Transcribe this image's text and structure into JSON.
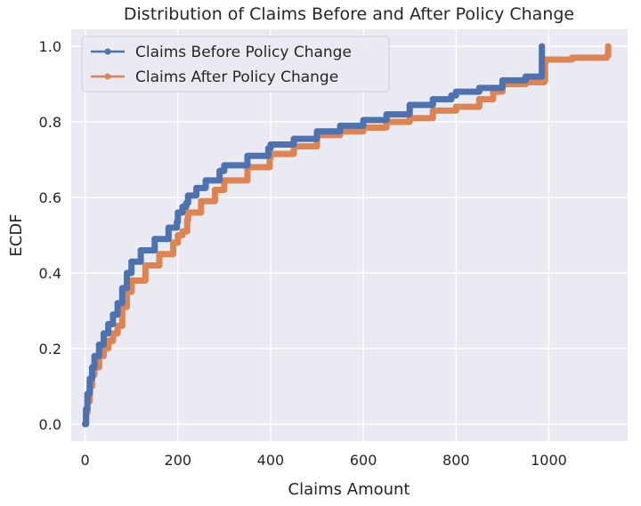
{
  "chart_data": {
    "type": "line",
    "title": "Distribution of Claims Before and After Policy Change",
    "xlabel": "Claims Amount",
    "ylabel": "ECDF",
    "xlim": [
      -30,
      1170
    ],
    "ylim": [
      -0.045,
      1.045
    ],
    "xticks": [
      0,
      200,
      400,
      600,
      800,
      1000
    ],
    "xtick_labels": [
      "0",
      "200",
      "400",
      "600",
      "800",
      "1000"
    ],
    "yticks": [
      0.0,
      0.2,
      0.4,
      0.6,
      0.8,
      1.0
    ],
    "ytick_labels": [
      "0.0",
      "0.2",
      "0.4",
      "0.6",
      "0.8",
      "1.0"
    ],
    "grid": true,
    "legend": {
      "position": "top-left"
    },
    "series": [
      {
        "name": "Claims Before Policy Change",
        "color": "#4c72b0",
        "points": [
          [
            0,
            0.0
          ],
          [
            2,
            0.04
          ],
          [
            5,
            0.08
          ],
          [
            10,
            0.12
          ],
          [
            15,
            0.15
          ],
          [
            20,
            0.18
          ],
          [
            30,
            0.21
          ],
          [
            40,
            0.24
          ],
          [
            50,
            0.265
          ],
          [
            60,
            0.29
          ],
          [
            70,
            0.32
          ],
          [
            80,
            0.36
          ],
          [
            90,
            0.4
          ],
          [
            100,
            0.43
          ],
          [
            120,
            0.46
          ],
          [
            150,
            0.49
          ],
          [
            180,
            0.52
          ],
          [
            198,
            0.535
          ],
          [
            200,
            0.56
          ],
          [
            210,
            0.575
          ],
          [
            218,
            0.585
          ],
          [
            222,
            0.605
          ],
          [
            240,
            0.625
          ],
          [
            260,
            0.645
          ],
          [
            290,
            0.67
          ],
          [
            300,
            0.685
          ],
          [
            350,
            0.71
          ],
          [
            395,
            0.73
          ],
          [
            400,
            0.74
          ],
          [
            450,
            0.755
          ],
          [
            500,
            0.775
          ],
          [
            550,
            0.79
          ],
          [
            600,
            0.805
          ],
          [
            650,
            0.82
          ],
          [
            700,
            0.845
          ],
          [
            750,
            0.86
          ],
          [
            790,
            0.87
          ],
          [
            800,
            0.88
          ],
          [
            850,
            0.89
          ],
          [
            900,
            0.91
          ],
          [
            950,
            0.92
          ],
          [
            985,
            0.93
          ],
          [
            985,
            1.0
          ]
        ]
      },
      {
        "name": "Claims After Policy Change",
        "color": "#dd8452",
        "points": [
          [
            0,
            0.0
          ],
          [
            2,
            0.03
          ],
          [
            5,
            0.06
          ],
          [
            10,
            0.1
          ],
          [
            15,
            0.13
          ],
          [
            20,
            0.15
          ],
          [
            30,
            0.18
          ],
          [
            40,
            0.2
          ],
          [
            50,
            0.22
          ],
          [
            60,
            0.24
          ],
          [
            70,
            0.26
          ],
          [
            80,
            0.31
          ],
          [
            90,
            0.35
          ],
          [
            100,
            0.38
          ],
          [
            130,
            0.42
          ],
          [
            160,
            0.45
          ],
          [
            190,
            0.48
          ],
          [
            200,
            0.5
          ],
          [
            210,
            0.51
          ],
          [
            220,
            0.54
          ],
          [
            222,
            0.56
          ],
          [
            250,
            0.59
          ],
          [
            280,
            0.62
          ],
          [
            300,
            0.645
          ],
          [
            350,
            0.68
          ],
          [
            398,
            0.705
          ],
          [
            400,
            0.715
          ],
          [
            450,
            0.735
          ],
          [
            500,
            0.765
          ],
          [
            550,
            0.775
          ],
          [
            600,
            0.785
          ],
          [
            650,
            0.8
          ],
          [
            700,
            0.81
          ],
          [
            750,
            0.83
          ],
          [
            800,
            0.84
          ],
          [
            850,
            0.86
          ],
          [
            880,
            0.88
          ],
          [
            900,
            0.9
          ],
          [
            950,
            0.905
          ],
          [
            990,
            0.91
          ],
          [
            992,
            0.965
          ],
          [
            1050,
            0.97
          ],
          [
            1125,
            0.975
          ],
          [
            1128,
            1.0
          ]
        ]
      }
    ]
  }
}
